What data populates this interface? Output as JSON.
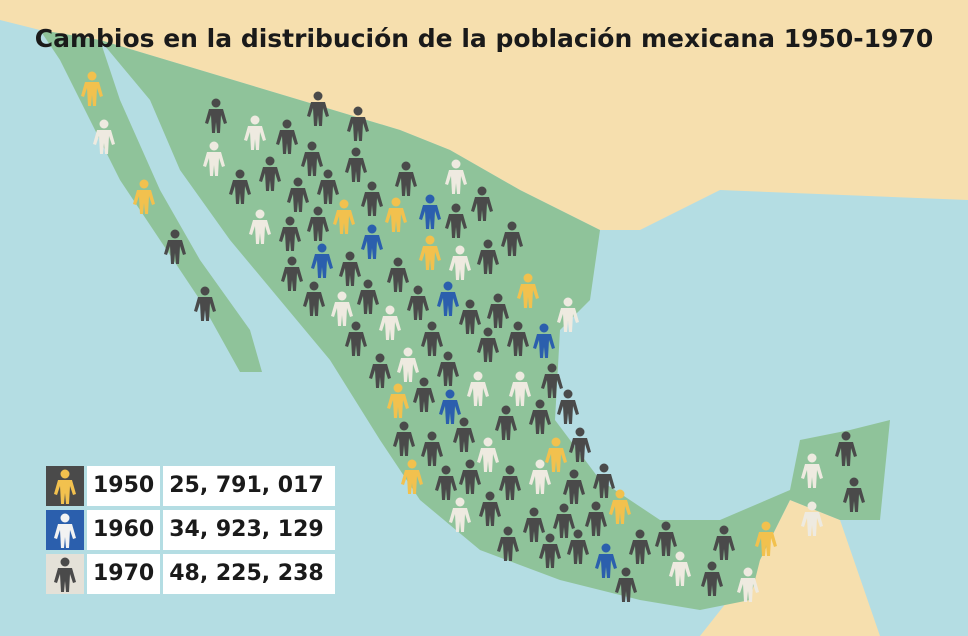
{
  "title": "Cambios en la distribución de la población mexicana 1950-1970",
  "legend": [
    {
      "year": "1950",
      "population": "25, 791, 017"
    },
    {
      "year": "1960",
      "population": "34, 923, 129"
    },
    {
      "year": "1970",
      "population": "48, 225, 238"
    }
  ]
}
